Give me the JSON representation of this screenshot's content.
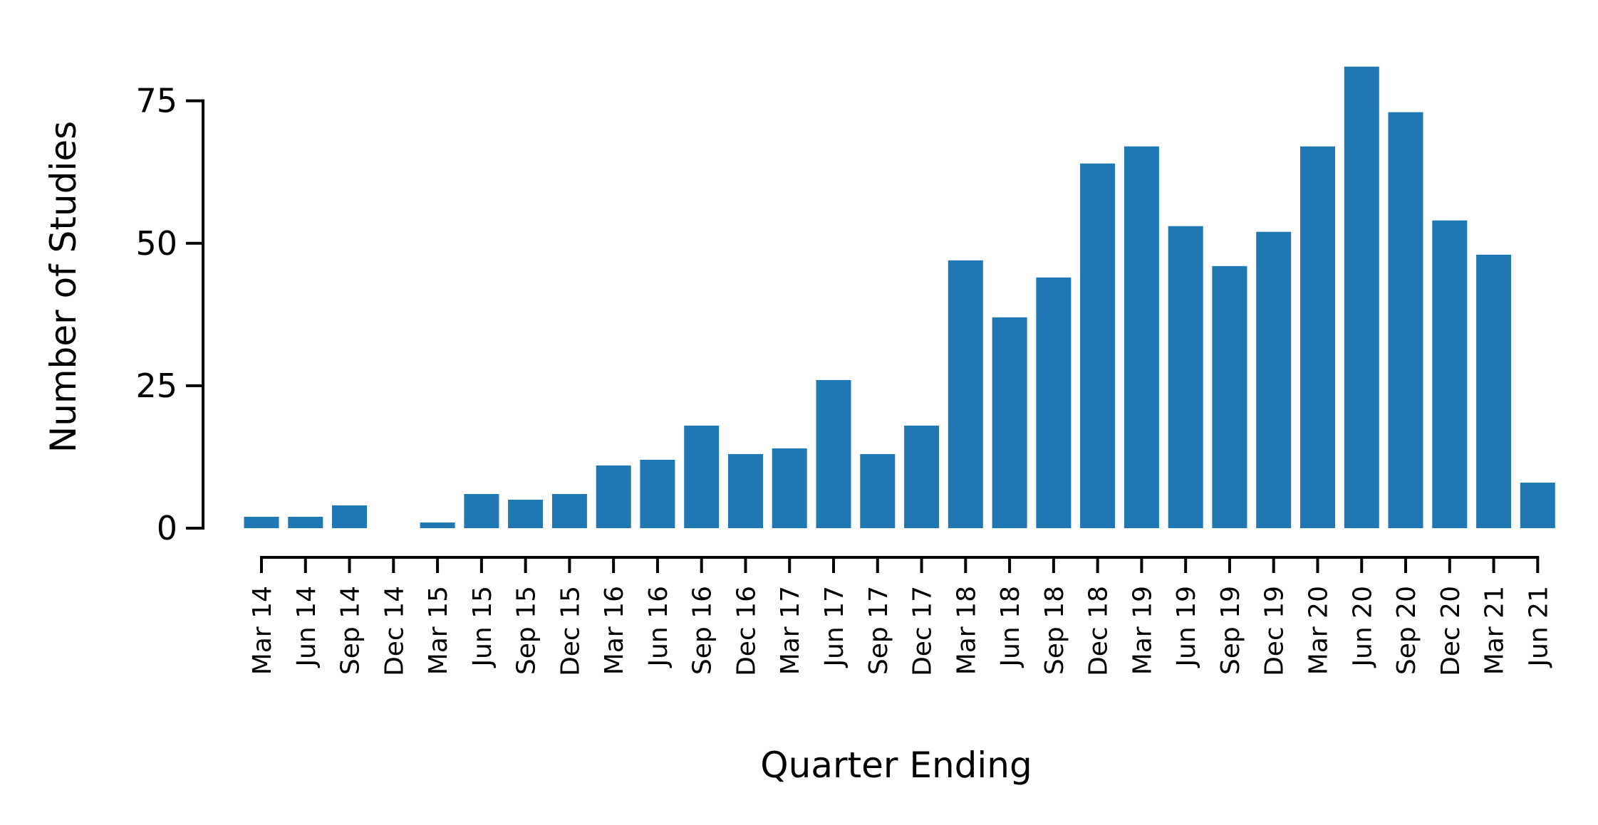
{
  "chart_data": {
    "type": "bar",
    "title": "",
    "xlabel": "Quarter Ending",
    "ylabel": "Number of Studies",
    "ylim": [
      0,
      85
    ],
    "yticks": [
      0,
      25,
      50,
      75
    ],
    "grid": false,
    "legend": "none",
    "bar_color": "#1f77b4",
    "categories": [
      "Mar 14",
      "Jun 14",
      "Sep 14",
      "Dec 14",
      "Mar 15",
      "Jun 15",
      "Sep 15",
      "Dec 15",
      "Mar 16",
      "Jun 16",
      "Sep 16",
      "Dec 16",
      "Mar 17",
      "Jun 17",
      "Sep 17",
      "Dec 17",
      "Mar 18",
      "Jun 18",
      "Sep 18",
      "Dec 18",
      "Mar 19",
      "Jun 19",
      "Sep 19",
      "Dec 19",
      "Mar 20",
      "Jun 20",
      "Sep 20",
      "Dec 20",
      "Mar 21",
      "Jun 21"
    ],
    "values": [
      2,
      2,
      4,
      0,
      1,
      6,
      5,
      6,
      11,
      12,
      18,
      13,
      14,
      26,
      13,
      18,
      47,
      37,
      44,
      64,
      67,
      53,
      46,
      52,
      67,
      81,
      73,
      54,
      48,
      8
    ]
  }
}
